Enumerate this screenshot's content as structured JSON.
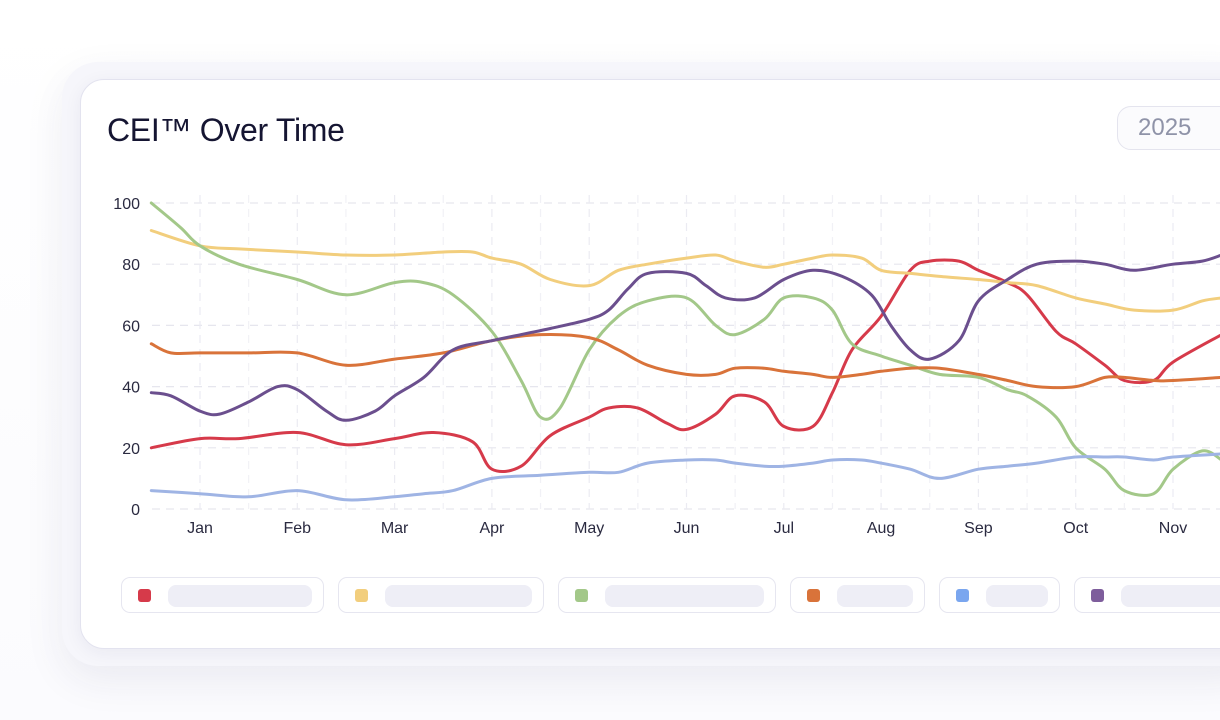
{
  "header": {
    "title": "CEI™ Over Time",
    "year_selected": "2025"
  },
  "chart_data": {
    "type": "line",
    "title": "CEI™ Over Time",
    "xlabel": "",
    "ylabel": "",
    "ylim": [
      0,
      100
    ],
    "yticks": [
      "0",
      "20",
      "40",
      "60",
      "80",
      "100"
    ],
    "categories": [
      "Jan",
      "Feb",
      "Mar",
      "Apr",
      "May",
      "Jun",
      "Jul",
      "Aug",
      "Sep",
      "Oct",
      "Nov"
    ],
    "grid": true,
    "smooth": true,
    "x_domain": [
      -0.5,
      10.5
    ],
    "legend_position": "bottom",
    "series": [
      {
        "color": "#d63a4a",
        "x": [
          -0.5,
          0,
          0.4,
          1,
          1.5,
          2,
          2.4,
          2.8,
          3,
          3.3,
          3.6,
          4,
          4.2,
          4.5,
          4.8,
          5,
          5.3,
          5.5,
          5.8,
          6,
          6.3,
          6.5,
          6.7,
          7,
          7.3,
          7.5,
          7.8,
          8,
          8.3,
          8.5,
          8.8,
          9,
          9.3,
          9.5,
          9.8,
          10,
          10.5
        ],
        "values": [
          20,
          23,
          23,
          25,
          21,
          23,
          25,
          22,
          13,
          14,
          24,
          30,
          33,
          33,
          28,
          26,
          31,
          37,
          35,
          27,
          27,
          38,
          52,
          63,
          78,
          81,
          81,
          78,
          74,
          70,
          58,
          54,
          47,
          42,
          42,
          48,
          57
        ]
      },
      {
        "color": "#f2ce7d",
        "x": [
          -0.5,
          0,
          0.4,
          1,
          1.5,
          2,
          2.5,
          2.8,
          3,
          3.3,
          3.6,
          4,
          4.3,
          4.6,
          5,
          5.3,
          5.5,
          5.8,
          6,
          6.3,
          6.5,
          6.8,
          7,
          7.3,
          7.6,
          8,
          8.3,
          8.6,
          9,
          9.3,
          9.6,
          10,
          10.3,
          10.5
        ],
        "values": [
          91,
          86,
          85,
          84,
          83,
          83,
          84,
          84,
          82,
          80,
          75,
          73,
          78,
          80,
          82,
          83,
          81,
          79,
          80,
          82,
          83,
          82,
          78,
          77,
          76,
          75,
          74,
          73,
          69,
          67,
          65,
          65,
          68,
          69
        ]
      },
      {
        "color": "#a3c889",
        "x": [
          -0.5,
          -0.2,
          0,
          0.4,
          1,
          1.5,
          2,
          2.3,
          2.6,
          3,
          3.3,
          3.5,
          3.7,
          4,
          4.3,
          4.6,
          5,
          5.3,
          5.5,
          5.8,
          6,
          6.3,
          6.5,
          6.7,
          7,
          7.3,
          7.6,
          8,
          8.3,
          8.5,
          8.8,
          9,
          9.3,
          9.5,
          9.8,
          10,
          10.3,
          10.5
        ],
        "values": [
          100,
          92,
          86,
          80,
          75,
          70,
          74,
          74,
          70,
          58,
          42,
          30,
          33,
          52,
          63,
          68,
          69,
          60,
          57,
          62,
          69,
          69,
          65,
          54,
          50,
          47,
          44,
          43,
          39,
          37,
          30,
          20,
          13,
          6,
          5,
          13,
          19,
          16
        ]
      },
      {
        "color": "#d9733a",
        "x": [
          -0.5,
          -0.3,
          0,
          0.5,
          1,
          1.5,
          2,
          2.5,
          3,
          3.5,
          4,
          4.3,
          4.6,
          5,
          5.3,
          5.5,
          5.8,
          6,
          6.3,
          6.5,
          6.8,
          7,
          7.3,
          7.6,
          8,
          8.3,
          8.6,
          9,
          9.3,
          9.5,
          9.8,
          10,
          10.5
        ],
        "values": [
          54,
          51,
          51,
          51,
          51,
          47,
          49,
          51,
          55,
          57,
          56,
          52,
          47,
          44,
          44,
          46,
          46,
          45,
          44,
          43,
          44,
          45,
          46,
          46,
          44,
          42,
          40,
          40,
          43,
          43,
          42,
          42,
          43
        ]
      },
      {
        "color": "#9fb4e4",
        "x": [
          -0.5,
          0,
          0.5,
          1,
          1.5,
          2,
          2.3,
          2.6,
          3,
          3.5,
          4,
          4.3,
          4.6,
          5,
          5.3,
          5.5,
          5.8,
          6,
          6.3,
          6.5,
          6.8,
          7,
          7.3,
          7.6,
          8,
          8.3,
          8.6,
          9,
          9.3,
          9.5,
          9.8,
          10,
          10.5
        ],
        "values": [
          6,
          5,
          4,
          6,
          3,
          4,
          5,
          6,
          10,
          11,
          12,
          12,
          15,
          16,
          16,
          15,
          14,
          14,
          15,
          16,
          16,
          15,
          13,
          10,
          13,
          14,
          15,
          17,
          17,
          17,
          16,
          17,
          18
        ]
      },
      {
        "color": "#6b4f8e",
        "x": [
          -0.5,
          -0.3,
          0,
          0.2,
          0.5,
          0.8,
          1,
          1.3,
          1.5,
          1.8,
          2,
          2.3,
          2.6,
          3,
          3.3,
          3.6,
          4,
          4.2,
          4.4,
          4.6,
          5,
          5.2,
          5.4,
          5.7,
          6,
          6.3,
          6.6,
          6.9,
          7.1,
          7.3,
          7.5,
          7.8,
          8,
          8.3,
          8.6,
          9,
          9.3,
          9.6,
          10,
          10.3,
          10.5
        ],
        "values": [
          38,
          37,
          32,
          31,
          35,
          40,
          39,
          32,
          29,
          32,
          37,
          43,
          52,
          55,
          57,
          59,
          62,
          65,
          72,
          77,
          77,
          73,
          69,
          69,
          75,
          78,
          76,
          70,
          60,
          52,
          49,
          55,
          68,
          75,
          80,
          81,
          80,
          78,
          80,
          81,
          83
        ]
      }
    ]
  }
}
